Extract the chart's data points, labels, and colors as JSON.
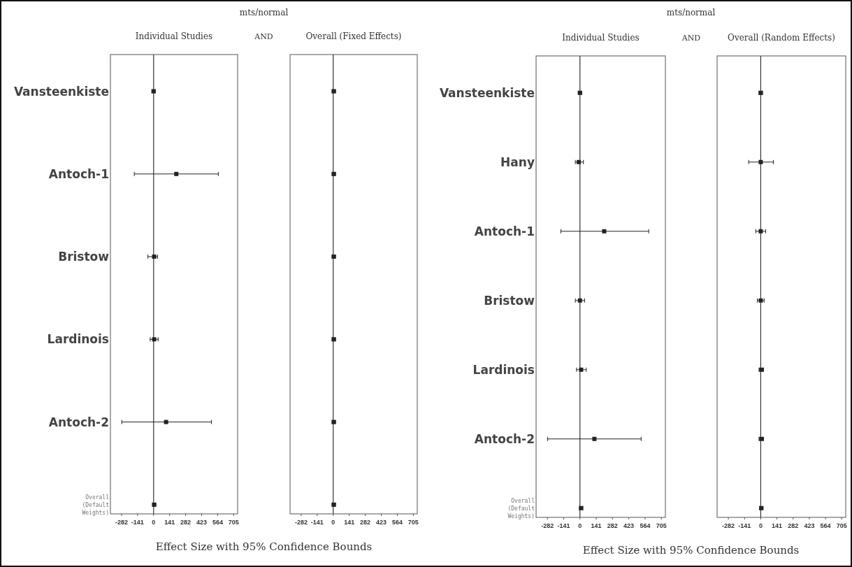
{
  "chart_data": [
    {
      "type": "scatter",
      "orientation": "horizontal",
      "title": "Individual Studies",
      "xlabel": "Effect Size with 95% Confidence Bounds",
      "annotations": [
        "mts/normal",
        "AND"
      ],
      "categories": [
        "Vansteenkiste",
        "Antoch-1",
        "Bristow",
        "Lardinois",
        "Antoch-2",
        "Overall (Default Weights)"
      ],
      "values": [
        0,
        200,
        5,
        5,
        110,
        5
      ],
      "errors": [
        15,
        [
          -170,
          570
        ],
        [
          -50,
          35
        ],
        [
          -30,
          40
        ],
        [
          -280,
          510
        ],
        15
      ],
      "color": "#222222",
      "marker": "square",
      "xlim": [
        -380,
        740
      ],
      "xticks": [
        -282,
        -141,
        0,
        141,
        282,
        423,
        564,
        705
      ],
      "ref_lines": [
        {
          "axis": "x",
          "value": 0
        }
      ]
    },
    {
      "type": "scatter",
      "orientation": "horizontal",
      "title": "Overall (Fixed Effects)",
      "categories": [
        null,
        null,
        null,
        null,
        null,
        null
      ],
      "values": [
        5,
        5,
        5,
        5,
        5,
        5
      ],
      "errors": [
        15,
        15,
        15,
        15,
        15,
        15
      ],
      "color": "#222222",
      "marker": "square",
      "xlim": [
        -380,
        740
      ],
      "xticks": [
        -282,
        -141,
        0,
        141,
        282,
        423,
        564,
        705
      ],
      "tick_labels": "x",
      "ref_lines": [
        {
          "axis": "x",
          "value": 0
        }
      ]
    },
    {
      "type": "scatter",
      "orientation": "horizontal",
      "title": "Individual Studies",
      "xlabel": "Effect Size with 95% Confidence Bounds",
      "annotations": [
        "mts/normal",
        "AND"
      ],
      "categories": [
        "Vansteenkiste",
        "Hany",
        "Antoch-1",
        "Bristow",
        "Lardinois",
        "Antoch-2",
        "Overall (Default Weights)"
      ],
      "values": [
        0,
        -10,
        210,
        0,
        10,
        125,
        10
      ],
      "errors": [
        15,
        [
          -40,
          30
        ],
        [
          -165,
          596
        ],
        [
          -40,
          40
        ],
        [
          -30,
          55
        ],
        [
          -280,
          530
        ],
        15
      ],
      "color": "#222222",
      "marker": "square",
      "xlim": [
        -380,
        740
      ],
      "xticks": [
        -282,
        -141,
        0,
        141,
        282,
        423,
        564,
        705
      ],
      "ref_lines": [
        {
          "axis": "x",
          "value": 0
        }
      ]
    },
    {
      "type": "scatter",
      "orientation": "horizontal",
      "title": "Overall (Random Effects)",
      "categories": [
        null,
        null,
        null,
        null,
        null,
        null,
        null
      ],
      "values": [
        0,
        0,
        0,
        0,
        5,
        5,
        5
      ],
      "errors": [
        15,
        [
          -105,
          110
        ],
        [
          -43,
          43
        ],
        [
          -30,
          30
        ],
        20,
        20,
        15
      ],
      "color": "#222222",
      "marker": "square",
      "xlim": [
        -380,
        740
      ],
      "xticks": [
        -282,
        -141,
        0,
        141,
        282,
        423,
        564,
        705
      ],
      "tick_labels": "x",
      "ref_lines": [
        {
          "axis": "x",
          "value": 0
        }
      ]
    }
  ]
}
